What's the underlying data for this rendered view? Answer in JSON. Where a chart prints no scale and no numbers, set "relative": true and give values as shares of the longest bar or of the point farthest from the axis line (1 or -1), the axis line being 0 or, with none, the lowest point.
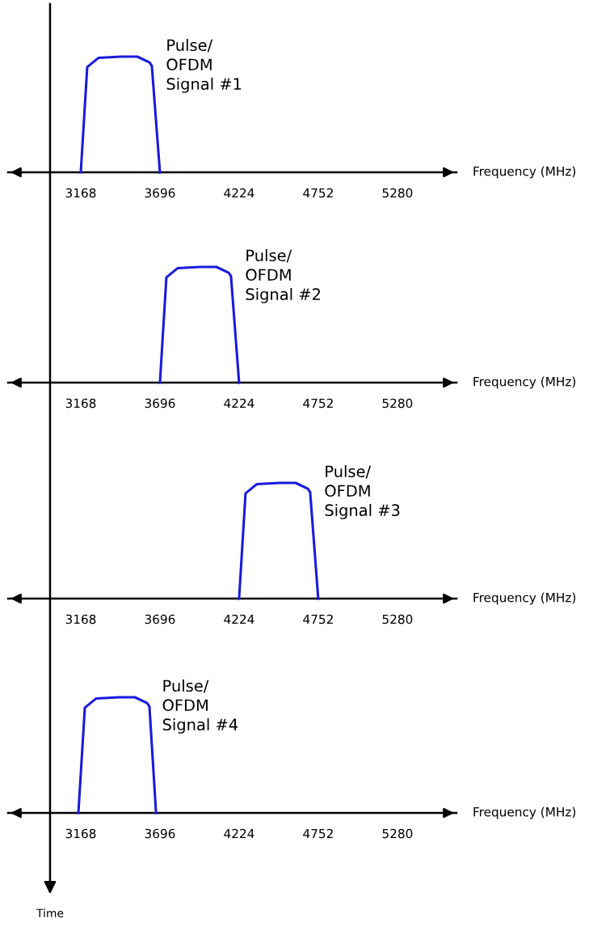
{
  "chart_data": [
    {
      "type": "line",
      "xlabel": "Frequency (MHz)",
      "relative": true,
      "xlim": [
        2683,
        5674
      ],
      "xticks": [
        3168,
        3696,
        4224,
        4752,
        5280
      ],
      "marker": "none",
      "line_style": "solid",
      "ref_lines": [
        {
          "axis": "x",
          "value": 2963,
          "color": "#000000"
        }
      ],
      "series": [
        {
          "name": "Pulse/\nOFDM\nSignal #1",
          "color": "#1a1adc",
          "x": [
            3168,
            3211,
            3287,
            3438,
            3545,
            3626,
            3642,
            3696
          ],
          "values": [
            0,
            0.91,
            0.99,
            1,
            1,
            0.95,
            0.92,
            0
          ]
        }
      ]
    },
    {
      "type": "line",
      "xlabel": "Frequency (MHz)",
      "relative": true,
      "xlim": [
        2683,
        5674
      ],
      "xticks": [
        3168,
        3696,
        4224,
        4752,
        5280
      ],
      "marker": "none",
      "line_style": "solid",
      "ref_lines": [
        {
          "axis": "x",
          "value": 2963,
          "color": "#000000"
        }
      ],
      "series": [
        {
          "name": "Pulse/\nOFDM\nSignal #2",
          "color": "#1a1adc",
          "x": [
            3696,
            3739,
            3815,
            3966,
            4073,
            4154,
            4170,
            4224
          ],
          "values": [
            0,
            0.91,
            0.99,
            1,
            1,
            0.95,
            0.92,
            0
          ]
        }
      ]
    },
    {
      "type": "line",
      "xlabel": "Frequency (MHz)",
      "relative": true,
      "xlim": [
        2683,
        5674
      ],
      "xticks": [
        3168,
        3696,
        4224,
        4752,
        5280
      ],
      "marker": "none",
      "line_style": "solid",
      "ref_lines": [
        {
          "axis": "x",
          "value": 2963,
          "color": "#000000"
        }
      ],
      "series": [
        {
          "name": "Pulse/\nOFDM\nSignal #3",
          "color": "#1a1adc",
          "x": [
            4224,
            4267,
            4343,
            4494,
            4601,
            4682,
            4698,
            4752
          ],
          "values": [
            0,
            0.91,
            0.99,
            1,
            1,
            0.95,
            0.92,
            0
          ]
        }
      ]
    },
    {
      "type": "line",
      "xlabel": "Frequency (MHz)",
      "relative": true,
      "xlim": [
        2683,
        5674
      ],
      "xticks": [
        3168,
        3696,
        4224,
        4752,
        5280
      ],
      "marker": "none",
      "line_style": "solid",
      "annotations": [
        "Time"
      ],
      "ref_lines": [
        {
          "axis": "x",
          "value": 2963,
          "color": "#000000"
        }
      ],
      "series": [
        {
          "name": "Pulse/\nOFDM\nSignal #4",
          "color": "#1a1adc",
          "x": [
            3152,
            3195,
            3271,
            3422,
            3529,
            3610,
            3626,
            3670
          ],
          "values": [
            0,
            0.91,
            0.99,
            1,
            1,
            0.95,
            0.92,
            0
          ]
        }
      ]
    }
  ]
}
